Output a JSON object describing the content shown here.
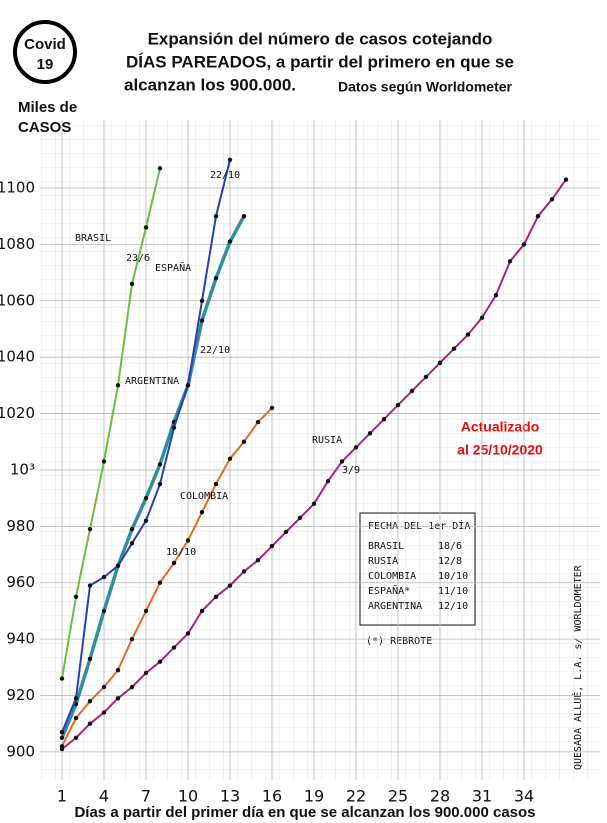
{
  "chart_data": {
    "type": "line",
    "badge": [
      "Covid",
      "19"
    ],
    "title": [
      "Expansión del número de casos cotejando",
      "DÍAS PAREADOS, a partir del primero en que se",
      "alcanzan los 900.000."
    ],
    "source": "Datos según Worldometer",
    "y_label": [
      "Miles de",
      "CASOS"
    ],
    "x_label": "Días a partir del primer día en que se alcanzan los 900.000 casos",
    "updated": [
      "Actualizado",
      "al 25/10/2020"
    ],
    "credit": "QUESADA ALLUÉ, L.A. s/ WORLDOMETER",
    "legend_title": "FECHA DEL 1er DÍA",
    "footnote": "(*) REBROTE",
    "grid": true,
    "xlim": [
      0,
      38
    ],
    "ylim": [
      895,
      1115
    ],
    "xticks": [
      1,
      4,
      7,
      10,
      13,
      16,
      19,
      22,
      25,
      28,
      31,
      34
    ],
    "yticks": [
      900,
      920,
      940,
      960,
      980,
      {
        "value": 1000,
        "label": "10³"
      },
      1020,
      1040,
      1060,
      1080,
      1100
    ],
    "x": [
      1,
      2,
      3,
      4,
      5,
      6,
      7,
      8,
      9,
      10,
      11,
      12,
      13,
      14,
      15,
      16,
      17,
      18,
      19,
      20,
      21,
      22,
      23,
      24,
      25,
      26,
      27,
      28,
      29,
      30,
      31,
      32,
      33,
      34,
      35,
      36,
      37
    ],
    "series": [
      {
        "name": "BRASIL",
        "label": "BRASIL",
        "first_day": "18/6",
        "color": "#6cbf3c",
        "values": [
          926,
          955,
          979,
          1003,
          1030,
          1066,
          1086,
          1107,
          null,
          null,
          null,
          null,
          null,
          null,
          null,
          null,
          null,
          null,
          null,
          null,
          null,
          null,
          null,
          null,
          null,
          null,
          null,
          null,
          null,
          null,
          null,
          null,
          null,
          null,
          null,
          null,
          null
        ]
      },
      {
        "name": "RUSIA",
        "label": "RUSIA",
        "first_day": "12/8",
        "color": "#b0207a",
        "values": [
          901,
          905,
          910,
          914,
          919,
          923,
          928,
          932,
          937,
          942,
          950,
          955,
          959,
          964,
          968,
          973,
          978,
          983,
          988,
          996,
          1003,
          1008,
          1013,
          1018,
          1023,
          1028,
          1033,
          1038,
          1043,
          1048,
          1054,
          1062,
          1074,
          1080,
          1090,
          1096,
          1103
        ]
      },
      {
        "name": "COLOMBIA",
        "label": "COLOMBIA",
        "first_day": "10/10",
        "color": "#e86a1c",
        "values": [
          902,
          912,
          918,
          923,
          929,
          940,
          950,
          960,
          967,
          975,
          985,
          995,
          1004,
          1010,
          1017,
          1022,
          null,
          null,
          null,
          null,
          null,
          null,
          null,
          null,
          null,
          null,
          null,
          null,
          null,
          null,
          null,
          null,
          null,
          null,
          null,
          null,
          null
        ]
      },
      {
        "name": "ESPAÑA*",
        "label": "ESPAÑA",
        "first_day": "11/10",
        "color": "#2f8fa0",
        "values": [
          905,
          917,
          933,
          950,
          966,
          979,
          990,
          1002,
          1017,
          1030,
          1053,
          1068,
          1081,
          1090,
          null,
          null,
          null,
          null,
          null,
          null,
          null,
          null,
          null,
          null,
          null,
          null,
          null,
          null,
          null,
          null,
          null,
          null,
          null,
          null,
          null,
          null,
          null
        ]
      },
      {
        "name": "ARGENTINA",
        "label": "ARGENTINA",
        "first_day": "12/10",
        "color": "#2a3fb0",
        "values": [
          907,
          919,
          959,
          962,
          966,
          974,
          982,
          995,
          1015,
          1030,
          1060,
          1090,
          1110,
          null,
          null,
          null,
          null,
          null,
          null,
          null,
          null,
          null,
          null,
          null,
          null,
          null,
          null,
          null,
          null,
          null,
          null,
          null,
          null,
          null,
          null,
          null,
          null
        ]
      }
    ],
    "annotations": [
      "23/6",
      "22/10",
      "22/10",
      "18/10",
      "3/9"
    ]
  }
}
